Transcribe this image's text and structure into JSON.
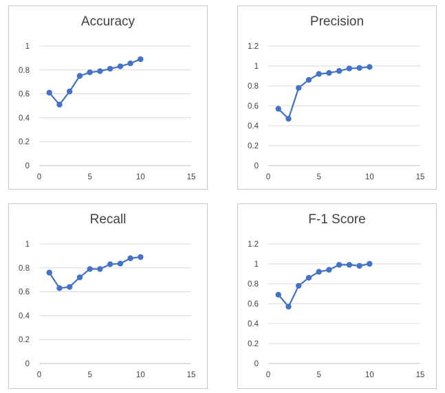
{
  "chart_data": [
    {
      "type": "line",
      "title": "Accuracy",
      "xlabel": "",
      "ylabel": "",
      "xlim": [
        0,
        15
      ],
      "ylim": [
        0,
        1
      ],
      "x_ticks": [
        0,
        5,
        10,
        15
      ],
      "y_ticks": [
        0,
        0.2,
        0.4,
        0.6,
        0.8,
        1
      ],
      "grid": true,
      "series": [
        {
          "color": "#4472C4",
          "x": [
            1,
            2,
            3,
            4,
            5,
            6,
            7,
            8,
            9,
            10
          ],
          "y": [
            0.61,
            0.51,
            0.62,
            0.75,
            0.78,
            0.79,
            0.81,
            0.83,
            0.855,
            0.89
          ]
        }
      ]
    },
    {
      "type": "line",
      "title": "Precision",
      "xlabel": "",
      "ylabel": "",
      "xlim": [
        0,
        15
      ],
      "ylim": [
        0,
        1.2
      ],
      "x_ticks": [
        0,
        5,
        10,
        15
      ],
      "y_ticks": [
        0,
        0.2,
        0.4,
        0.6,
        0.8,
        1,
        1.2
      ],
      "grid": true,
      "series": [
        {
          "color": "#4472C4",
          "x": [
            1,
            2,
            3,
            4,
            5,
            6,
            7,
            8,
            9,
            10
          ],
          "y": [
            0.57,
            0.47,
            0.78,
            0.86,
            0.92,
            0.93,
            0.95,
            0.975,
            0.98,
            0.99
          ]
        }
      ]
    },
    {
      "type": "line",
      "title": "Recall",
      "xlabel": "",
      "ylabel": "",
      "xlim": [
        0,
        15
      ],
      "ylim": [
        0,
        1
      ],
      "x_ticks": [
        0,
        5,
        10,
        15
      ],
      "y_ticks": [
        0,
        0.2,
        0.4,
        0.6,
        0.8,
        1
      ],
      "grid": true,
      "series": [
        {
          "color": "#4472C4",
          "x": [
            1,
            2,
            3,
            4,
            5,
            6,
            7,
            8,
            9,
            10
          ],
          "y": [
            0.76,
            0.63,
            0.64,
            0.72,
            0.79,
            0.79,
            0.83,
            0.835,
            0.88,
            0.89
          ]
        }
      ]
    },
    {
      "type": "line",
      "title": "F-1 Score",
      "xlabel": "",
      "ylabel": "",
      "xlim": [
        0,
        15
      ],
      "ylim": [
        0,
        1.2
      ],
      "x_ticks": [
        0,
        5,
        10,
        15
      ],
      "y_ticks": [
        0,
        0.2,
        0.4,
        0.6,
        0.8,
        1,
        1.2
      ],
      "grid": true,
      "series": [
        {
          "color": "#4472C4",
          "x": [
            1,
            2,
            3,
            4,
            5,
            6,
            7,
            8,
            9,
            10
          ],
          "y": [
            0.69,
            0.57,
            0.78,
            0.86,
            0.92,
            0.94,
            0.99,
            0.99,
            0.98,
            1.0
          ]
        }
      ]
    }
  ],
  "colors": {
    "series": "#4472C4",
    "grid": "#d9d9d9",
    "text": "#404040",
    "border": "#c8c8c8"
  }
}
